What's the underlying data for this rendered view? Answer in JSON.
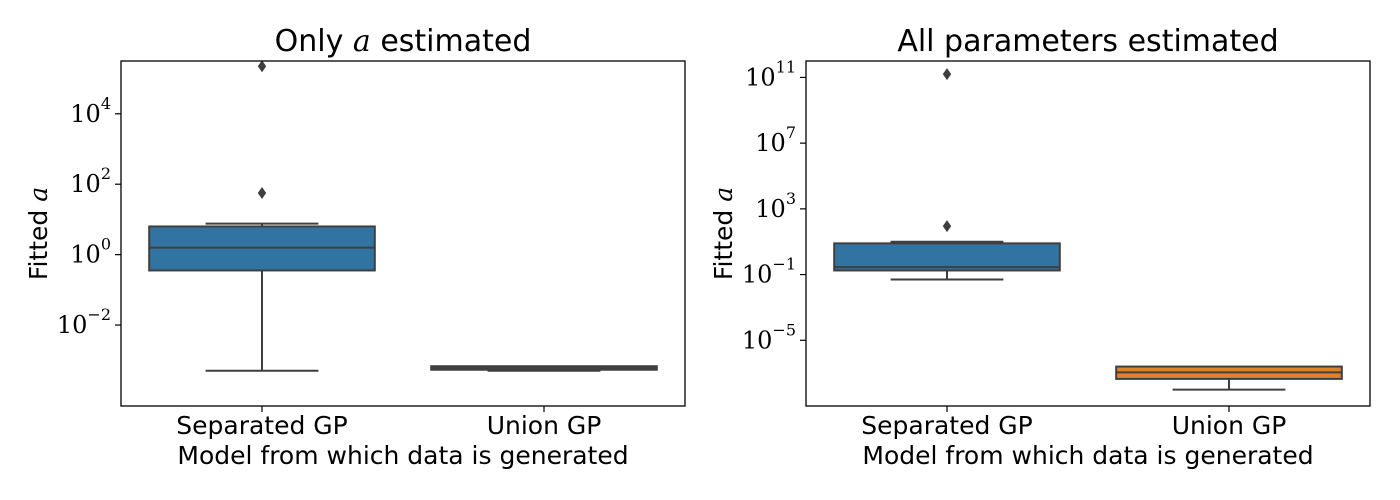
{
  "chart_data": [
    {
      "type": "box",
      "title": {
        "prefix": "Only ",
        "math": "a",
        "suffix": " estimated"
      },
      "xlabel": "Model from which data is generated",
      "ylabel": {
        "prefix": "Fitted ",
        "math": "a"
      },
      "yscale": "log",
      "ylim_exp": [
        -4.3,
        5.5
      ],
      "yticks": [
        -2,
        0,
        2,
        4
      ],
      "categories": [
        "Separated GP",
        "Union GP"
      ],
      "boxes": [
        {
          "category": "Separated GP",
          "color": "#3274a1",
          "whisker_low_exp": -3.3,
          "q1_exp": -0.45,
          "median_exp": 0.2,
          "q3_exp": 0.8,
          "whisker_high_exp": 0.88,
          "outliers_exp": [
            1.75,
            5.35
          ]
        },
        {
          "category": "Union GP",
          "color": "#3274a1",
          "whisker_low_exp": -3.3,
          "q1_exp": -3.27,
          "median_exp": -3.22,
          "q3_exp": -3.17,
          "whisker_high_exp": -3.2,
          "outliers_exp": []
        }
      ]
    },
    {
      "type": "box",
      "title": {
        "prefix": "All parameters estimated",
        "math": "",
        "suffix": ""
      },
      "xlabel": "Model from which data is generated",
      "ylabel": {
        "prefix": "Fitted ",
        "math": "a"
      },
      "yscale": "log",
      "ylim_exp": [
        -9.0,
        12.0
      ],
      "yticks": [
        -5,
        -1,
        3,
        7,
        11
      ],
      "categories": [
        "Separated GP",
        "Union GP"
      ],
      "boxes": [
        {
          "category": "Separated GP",
          "color": "#3274a1",
          "whisker_low_exp": -1.3,
          "q1_exp": -0.75,
          "median_exp": -0.55,
          "q3_exp": 0.9,
          "whisker_high_exp": 1.0,
          "outliers_exp": [
            1.95,
            11.2
          ]
        },
        {
          "category": "Union GP",
          "color": "#e1812c",
          "whisker_low_exp": -8.0,
          "q1_exp": -7.35,
          "median_exp": -6.95,
          "q3_exp": -6.6,
          "whisker_high_exp": -6.7,
          "outliers_exp": []
        }
      ]
    }
  ],
  "colors": {
    "box_blue": "#3274a1",
    "box_orange": "#e1812c",
    "line": "#3f3f3f"
  }
}
